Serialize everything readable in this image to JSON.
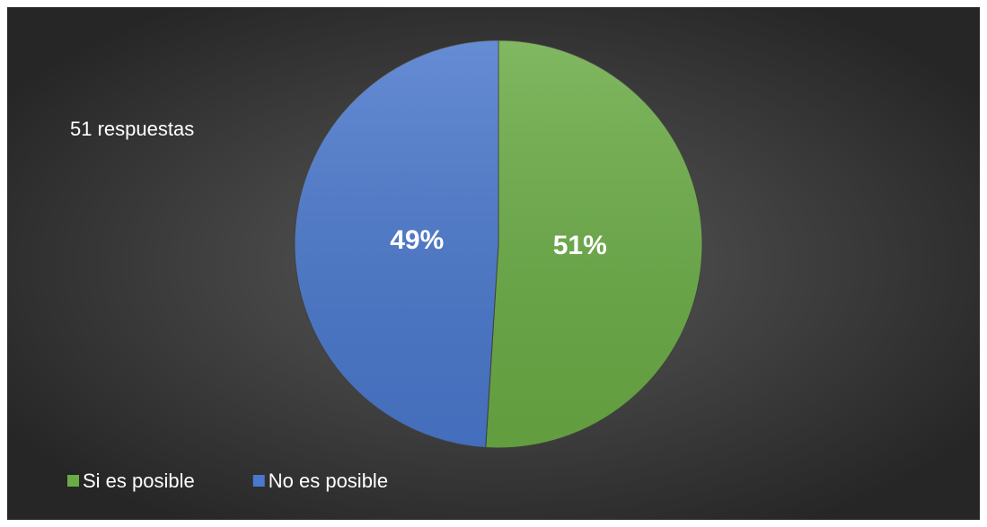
{
  "chart_data": {
    "type": "pie",
    "annotation": "51 respuestas",
    "categories": [
      "Si es posible",
      "No es posible"
    ],
    "values": [
      51,
      49
    ],
    "value_labels": [
      "51%",
      "49%"
    ],
    "colors": [
      "#6aab45",
      "#4a78cc"
    ]
  }
}
